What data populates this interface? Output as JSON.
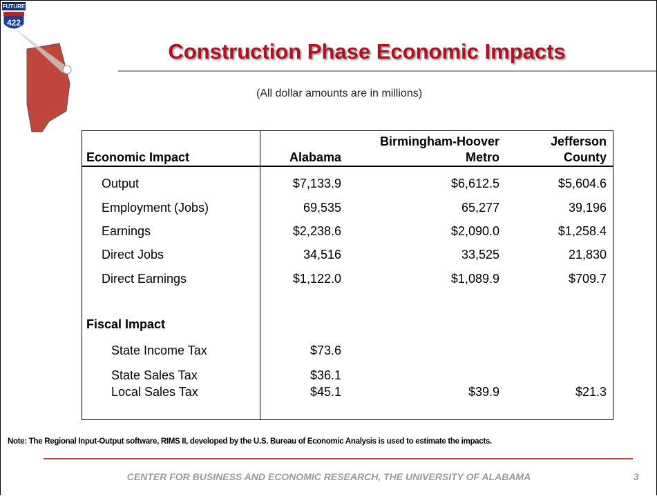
{
  "logo": {
    "top": "FUTURE",
    "number": "422"
  },
  "title": "Construction Phase Economic Impacts",
  "subtitle": "(All dollar amounts are in millions)",
  "table": {
    "columns": [
      [
        "Economic Impact"
      ],
      [
        "Alabama"
      ],
      [
        "Birmingham-Hoover",
        "Metro"
      ],
      [
        "Jefferson",
        "County"
      ]
    ],
    "rows": [
      [
        "Output",
        "$7,133.9",
        "$6,612.5",
        "$5,604.6"
      ],
      [
        "Employment (Jobs)",
        "69,535",
        "65,277",
        "39,196"
      ],
      [
        "Earnings",
        "$2,238.6",
        "$2,090.0",
        "$1,258.4"
      ],
      [
        "Direct Jobs",
        "34,516",
        "33,525",
        "21,830"
      ],
      [
        "Direct Earnings",
        "$1,122.0",
        "$1,089.9",
        "$709.7"
      ]
    ],
    "fiscal_heading": "Fiscal Impact",
    "fiscal_rows": [
      [
        "State Income Tax",
        "$73.6",
        null,
        null
      ],
      [
        "State Sales Tax",
        "$36.1",
        null,
        null
      ],
      [
        "Local Sales Tax",
        "$45.1",
        "$39.9",
        "$21.3"
      ]
    ]
  },
  "note": "Note: The Regional Input-Output software, RIMS II, developed by the U.S. Bureau of Economic Analysis is used to estimate the impacts.",
  "footer": "CENTER FOR BUSINESS AND ECONOMIC RESEARCH, THE UNIVERSITY OF ALABAMA",
  "page_number": "3"
}
